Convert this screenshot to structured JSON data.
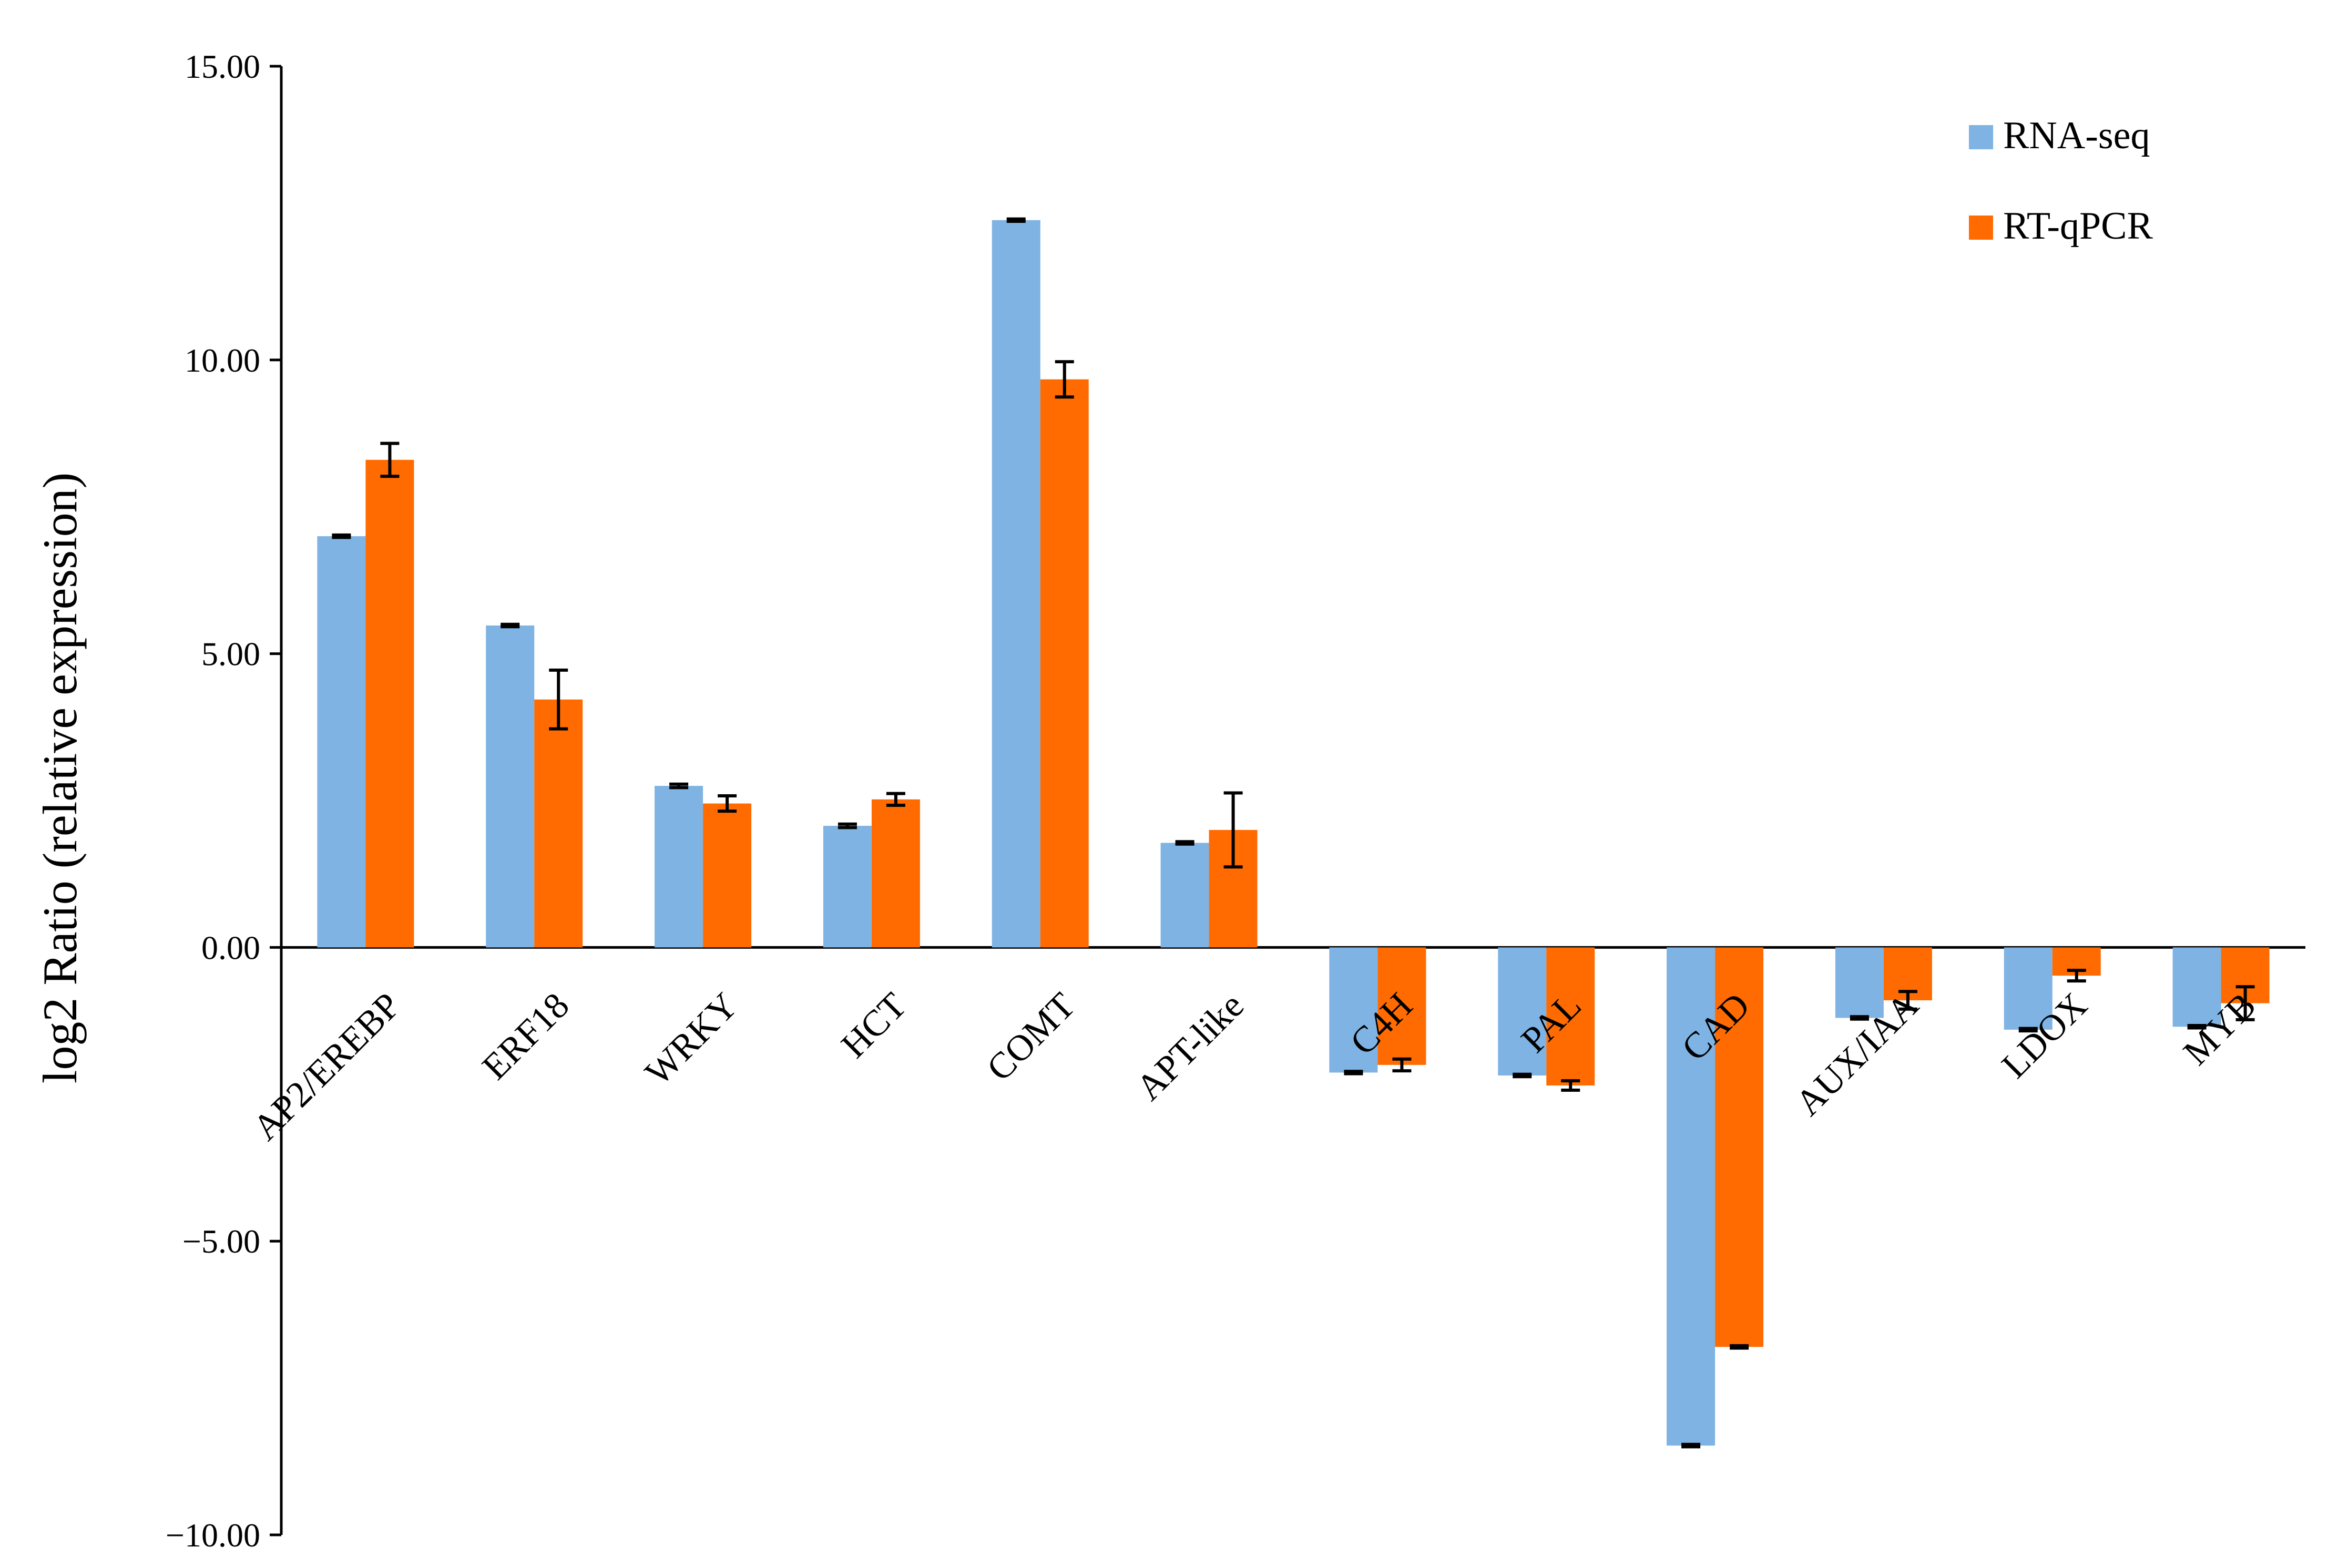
{
  "chart_data": {
    "type": "bar",
    "ylabel": "log2 Ratio (relative expression)",
    "ylim": [
      -10,
      15
    ],
    "ytick_values": [
      15,
      10,
      5,
      0,
      -5,
      -10
    ],
    "ytick_labels": [
      "15.00",
      "10.00",
      "5.00",
      "0.00",
      "−5.00",
      "−10.00"
    ],
    "categories": [
      "AP2/EREBP",
      "ERF18",
      "WRKY",
      "HCT",
      "COMT",
      "APT-like",
      "C4H",
      "PAL",
      "CAD",
      "AUX/IAA",
      "LDOX",
      "MYB"
    ],
    "series": [
      {
        "name": "RNA-seq",
        "color": "#7EB3E3",
        "values": [
          7.0,
          5.48,
          2.75,
          2.07,
          12.38,
          1.78,
          -2.13,
          -2.18,
          -8.48,
          -1.2,
          -1.4,
          -1.35
        ],
        "errors": [
          0.02,
          0.02,
          0.03,
          0.03,
          0.02,
          0.02,
          0.02,
          0.02,
          0.02,
          0.02,
          0.02,
          0.02
        ]
      },
      {
        "name": "RT-qPCR",
        "color": "#FF6B00",
        "values": [
          8.3,
          4.22,
          2.45,
          2.52,
          9.67,
          2.0,
          -2.0,
          -2.35,
          -6.8,
          -0.9,
          -0.48,
          -0.95
        ],
        "errors": [
          0.28,
          0.5,
          0.13,
          0.1,
          0.3,
          0.63,
          0.1,
          0.08,
          0.02,
          0.15,
          0.09,
          0.28
        ]
      }
    ],
    "legend": {
      "position": "top-right",
      "entries": [
        "RNA-seq",
        "RT-qPCR"
      ]
    },
    "grid": false
  }
}
